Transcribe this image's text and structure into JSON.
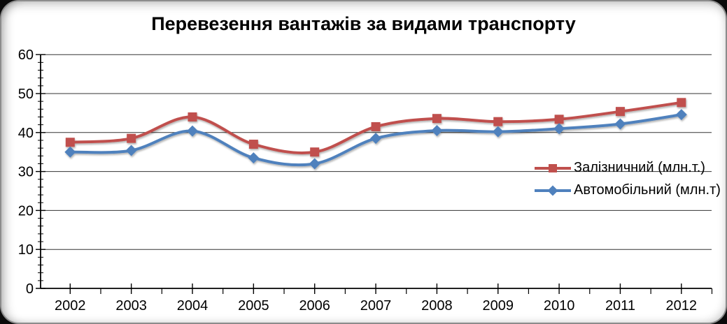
{
  "page": {
    "background": "#0a0a0a"
  },
  "frame": {
    "background": "#ffffff",
    "border_color": "#8c8c8c"
  },
  "chart_data": {
    "type": "line",
    "title": "Перевезення вантажів за видами транспорту",
    "x_labels": [
      "2002",
      "2003",
      "2004",
      "2005",
      "2006",
      "2007",
      "2008",
      "2009",
      "2010",
      "2011",
      "2012"
    ],
    "series": [
      {
        "name": "Залізничний (млн.т.)",
        "color": "#C0504D",
        "marker": "square",
        "values": [
          37.5,
          38.5,
          44.0,
          37.0,
          35.0,
          41.5,
          43.6,
          42.8,
          43.4,
          45.4,
          47.7
        ]
      },
      {
        "name": "Автомобільний (млн.т)",
        "color": "#4F81BD",
        "marker": "diamond",
        "values": [
          35.0,
          35.4,
          40.4,
          33.5,
          32.0,
          38.5,
          40.5,
          40.2,
          41.0,
          42.2,
          44.6
        ]
      }
    ],
    "ylim": [
      0,
      60
    ],
    "yticks": [
      0,
      10,
      20,
      30,
      40,
      50,
      60
    ],
    "y_minor_step": 2,
    "grid": true,
    "smooth": true,
    "legend_position": "inside-right",
    "axis_color": "#000000",
    "gridline_color": "#333333",
    "text_color": "#000000"
  }
}
